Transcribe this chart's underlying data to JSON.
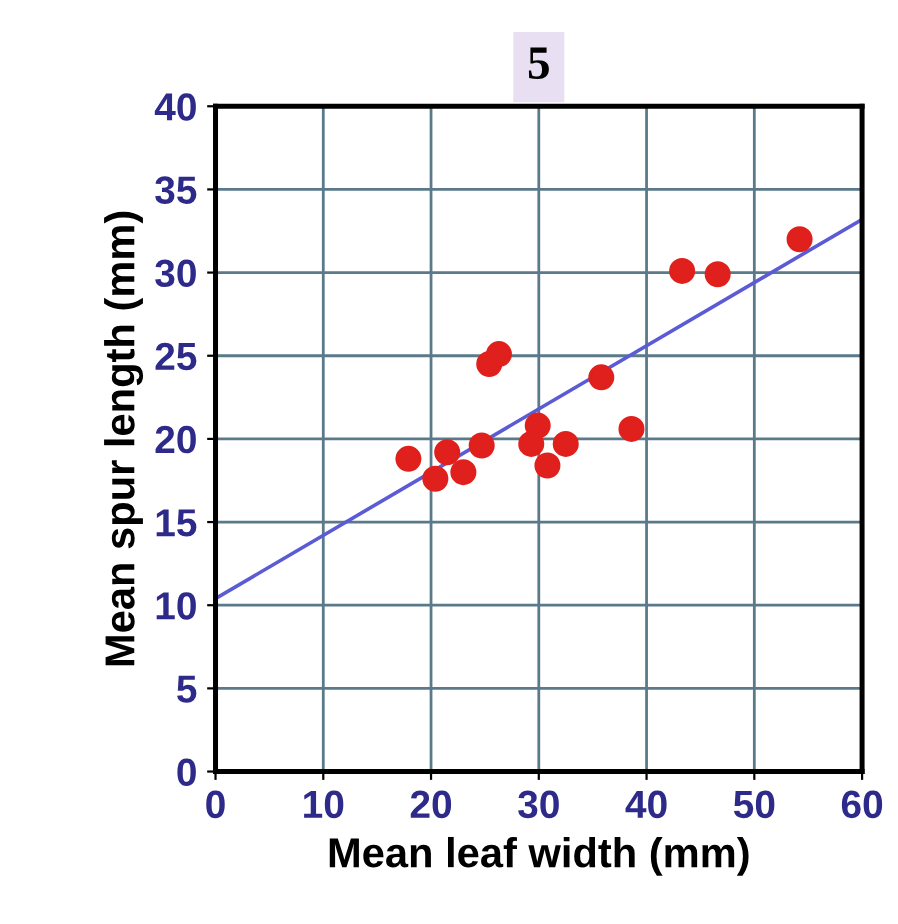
{
  "chart_data": {
    "type": "scatter",
    "title": "5",
    "xlabel": "Mean leaf width (mm)",
    "ylabel": "Mean spur length (mm)",
    "xlim": [
      0,
      60
    ],
    "ylim": [
      0,
      40
    ],
    "xticks": [
      0,
      10,
      20,
      30,
      40,
      50,
      60
    ],
    "yticks": [
      0,
      5,
      10,
      15,
      20,
      25,
      30,
      35,
      40
    ],
    "grid": true,
    "series": [
      {
        "marker": "circle",
        "color": "#e0201c",
        "x": [
          17.9,
          20.4,
          21.5,
          23.0,
          24.7,
          25.4,
          26.3,
          29.3,
          29.9,
          30.8,
          32.5,
          35.8,
          38.6,
          43.3,
          46.6,
          54.2
        ],
        "values": [
          18.8,
          17.6,
          19.2,
          18.0,
          19.6,
          24.5,
          25.1,
          19.7,
          20.8,
          18.4,
          19.7,
          23.7,
          20.6,
          30.1,
          29.9,
          32.0
        ]
      },
      {
        "type": "line",
        "color": "#5b5bd6",
        "x": [
          0,
          60
        ],
        "values": [
          10.4,
          33.2
        ]
      }
    ]
  }
}
